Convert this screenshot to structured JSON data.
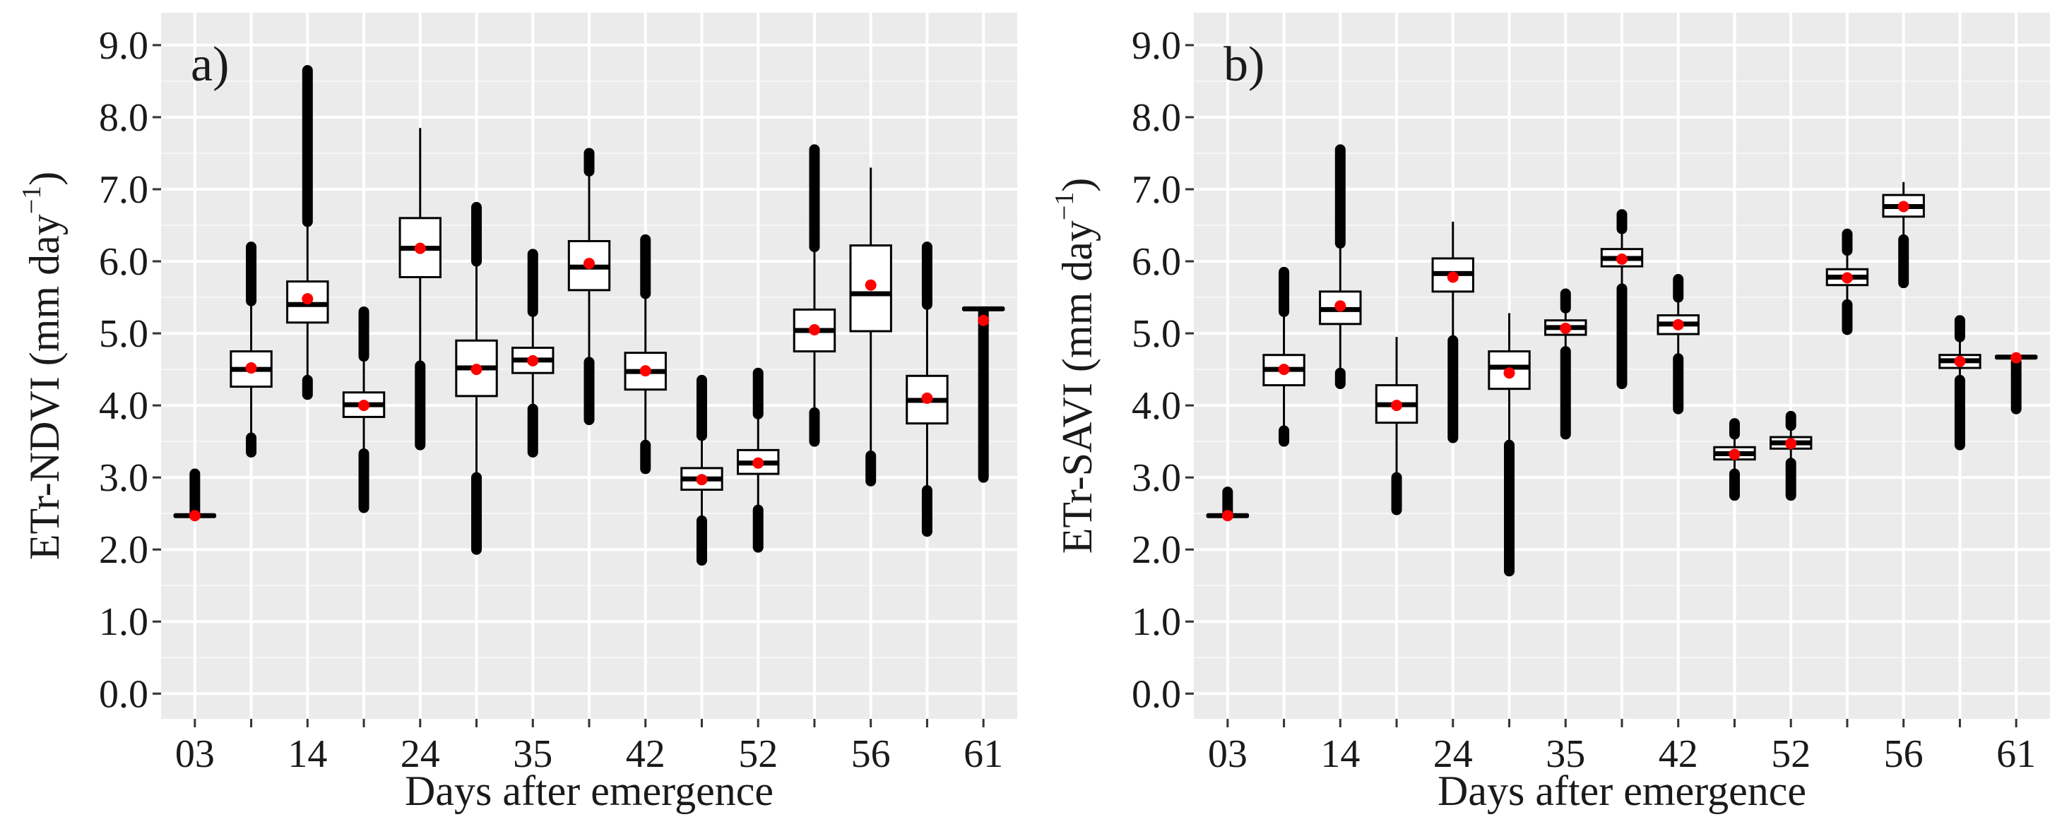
{
  "chart_data": [
    {
      "type": "boxplot",
      "panel_label": "a)",
      "ylabel": "ETr-NDVI (mm day",
      "ylabel_sup": "−1",
      "ylabel_close": ")",
      "xlabel": "Days after emergence",
      "ylim": [
        -0.35,
        9.45
      ],
      "yticks": [
        "0.0",
        "1.0",
        "2.0",
        "3.0",
        "4.0",
        "5.0",
        "6.0",
        "7.0",
        "8.0",
        "9.0"
      ],
      "xtick_labels": [
        "03",
        "",
        "14",
        "",
        "24",
        "",
        "35",
        "",
        "42",
        "",
        "52",
        "",
        "56",
        "",
        "61"
      ],
      "grid": true,
      "boxes": [
        {
          "q1": 2.46,
          "median": 2.47,
          "q3": 2.48,
          "low": 2.46,
          "high": 2.48,
          "mean": 2.47,
          "out_low": null,
          "out_high": [
            2.5,
            3.05
          ]
        },
        {
          "q1": 4.26,
          "median": 4.5,
          "q3": 4.75,
          "low": 3.55,
          "high": 5.45,
          "mean": 4.52,
          "out_low": [
            3.35,
            3.55
          ],
          "out_high": [
            5.45,
            6.2
          ]
        },
        {
          "q1": 5.15,
          "median": 5.4,
          "q3": 5.72,
          "low": 4.35,
          "high": 6.55,
          "mean": 5.48,
          "out_low": [
            4.15,
            4.35
          ],
          "out_high": [
            6.55,
            8.65
          ]
        },
        {
          "q1": 3.84,
          "median": 4.01,
          "q3": 4.18,
          "low": 3.33,
          "high": 4.68,
          "mean": 4.0,
          "out_low": [
            2.58,
            3.33
          ],
          "out_high": [
            4.68,
            5.3
          ]
        },
        {
          "q1": 5.78,
          "median": 6.18,
          "q3": 6.6,
          "low": 4.55,
          "high": 7.85,
          "mean": 6.18,
          "out_low": [
            3.45,
            4.55
          ],
          "out_high": null
        },
        {
          "q1": 4.13,
          "median": 4.52,
          "q3": 4.9,
          "low": 3.0,
          "high": 6.0,
          "mean": 4.5,
          "out_low": [
            2.0,
            3.0
          ],
          "out_high": [
            6.0,
            6.75
          ]
        },
        {
          "q1": 4.45,
          "median": 4.63,
          "q3": 4.8,
          "low": 3.95,
          "high": 5.3,
          "mean": 4.62,
          "out_low": [
            3.35,
            3.95
          ],
          "out_high": [
            5.3,
            6.1
          ]
        },
        {
          "q1": 5.6,
          "median": 5.92,
          "q3": 6.28,
          "low": 4.6,
          "high": 7.25,
          "mean": 5.97,
          "out_low": [
            3.8,
            4.6
          ],
          "out_high": [
            7.25,
            7.5
          ]
        },
        {
          "q1": 4.22,
          "median": 4.47,
          "q3": 4.73,
          "low": 3.45,
          "high": 5.55,
          "mean": 4.48,
          "out_low": [
            3.12,
            3.45
          ],
          "out_high": [
            5.55,
            6.3
          ]
        },
        {
          "q1": 2.83,
          "median": 2.98,
          "q3": 3.13,
          "low": 2.4,
          "high": 3.58,
          "mean": 2.97,
          "out_low": [
            1.85,
            2.4
          ],
          "out_high": [
            3.58,
            4.35
          ]
        },
        {
          "q1": 3.05,
          "median": 3.2,
          "q3": 3.38,
          "low": 2.55,
          "high": 3.88,
          "mean": 3.2,
          "out_low": [
            2.03,
            2.55
          ],
          "out_high": [
            3.88,
            4.45
          ]
        },
        {
          "q1": 4.75,
          "median": 5.04,
          "q3": 5.33,
          "low": 3.9,
          "high": 6.2,
          "mean": 5.05,
          "out_low": [
            3.5,
            3.9
          ],
          "out_high": [
            6.2,
            7.55
          ]
        },
        {
          "q1": 5.03,
          "median": 5.55,
          "q3": 6.22,
          "low": 3.3,
          "high": 7.3,
          "mean": 5.67,
          "out_low": [
            2.95,
            3.3
          ],
          "out_high": null
        },
        {
          "q1": 3.75,
          "median": 4.07,
          "q3": 4.41,
          "low": 2.82,
          "high": 5.4,
          "mean": 4.1,
          "out_low": [
            2.25,
            2.82
          ],
          "out_high": [
            5.4,
            6.2
          ]
        },
        {
          "q1": 5.33,
          "median": 5.34,
          "q3": 5.35,
          "low": 5.33,
          "high": 5.35,
          "mean": 5.18,
          "out_low": [
            3.0,
            5.3
          ],
          "out_high": null
        }
      ]
    },
    {
      "type": "boxplot",
      "panel_label": "b)",
      "ylabel": "ETr-SAVI (mm day",
      "ylabel_sup": "−1",
      "ylabel_close": ")",
      "xlabel": "Days after emergence",
      "ylim": [
        -0.35,
        9.45
      ],
      "yticks": [
        "0.0",
        "1.0",
        "2.0",
        "3.0",
        "4.0",
        "5.0",
        "6.0",
        "7.0",
        "8.0",
        "9.0"
      ],
      "xtick_labels": [
        "03",
        "",
        "14",
        "",
        "24",
        "",
        "35",
        "",
        "42",
        "",
        "52",
        "",
        "56",
        "",
        "61"
      ],
      "grid": true,
      "boxes": [
        {
          "q1": 2.46,
          "median": 2.47,
          "q3": 2.48,
          "low": 2.46,
          "high": 2.48,
          "mean": 2.47,
          "out_low": null,
          "out_high": [
            2.5,
            2.8
          ]
        },
        {
          "q1": 4.28,
          "median": 4.5,
          "q3": 4.7,
          "low": 3.65,
          "high": 5.3,
          "mean": 4.5,
          "out_low": [
            3.5,
            3.65
          ],
          "out_high": [
            5.3,
            5.85
          ]
        },
        {
          "q1": 5.13,
          "median": 5.33,
          "q3": 5.58,
          "low": 4.45,
          "high": 6.25,
          "mean": 5.38,
          "out_low": [
            4.3,
            4.45
          ],
          "out_high": [
            6.25,
            7.55
          ]
        },
        {
          "q1": 3.76,
          "median": 4.01,
          "q3": 4.28,
          "low": 3.0,
          "high": 4.95,
          "mean": 4.0,
          "out_low": [
            2.55,
            3.0
          ],
          "out_high": null
        },
        {
          "q1": 5.58,
          "median": 5.83,
          "q3": 6.04,
          "low": 4.9,
          "high": 6.55,
          "mean": 5.78,
          "out_low": [
            3.55,
            4.9
          ],
          "out_high": null
        },
        {
          "q1": 4.23,
          "median": 4.53,
          "q3": 4.75,
          "low": 3.45,
          "high": 5.28,
          "mean": 4.45,
          "out_low": [
            1.7,
            3.45
          ],
          "out_high": null
        },
        {
          "q1": 4.98,
          "median": 5.08,
          "q3": 5.18,
          "low": 4.75,
          "high": 5.35,
          "mean": 5.07,
          "out_low": [
            3.6,
            4.75
          ],
          "out_high": [
            5.35,
            5.55
          ]
        },
        {
          "q1": 5.93,
          "median": 6.04,
          "q3": 6.17,
          "low": 5.62,
          "high": 6.45,
          "mean": 6.03,
          "out_low": [
            4.3,
            5.62
          ],
          "out_high": [
            6.45,
            6.65
          ]
        },
        {
          "q1": 4.99,
          "median": 5.13,
          "q3": 5.25,
          "low": 4.65,
          "high": 5.5,
          "mean": 5.12,
          "out_low": [
            3.95,
            4.65
          ],
          "out_high": [
            5.5,
            5.75
          ]
        },
        {
          "q1": 3.25,
          "median": 3.33,
          "q3": 3.42,
          "low": 3.05,
          "high": 3.6,
          "mean": 3.32,
          "out_low": [
            2.75,
            3.05
          ],
          "out_high": [
            3.6,
            3.75
          ]
        },
        {
          "q1": 3.4,
          "median": 3.48,
          "q3": 3.56,
          "low": 3.2,
          "high": 3.72,
          "mean": 3.47,
          "out_low": [
            2.75,
            3.2
          ],
          "out_high": [
            3.72,
            3.85
          ]
        },
        {
          "q1": 5.67,
          "median": 5.78,
          "q3": 5.89,
          "low": 5.4,
          "high": 6.15,
          "mean": 5.77,
          "out_low": [
            5.05,
            5.4
          ],
          "out_high": [
            6.15,
            6.38
          ]
        },
        {
          "q1": 6.62,
          "median": 6.76,
          "q3": 6.92,
          "low": 6.3,
          "high": 7.1,
          "mean": 6.76,
          "out_low": [
            5.7,
            6.3
          ],
          "out_high": null
        },
        {
          "q1": 4.52,
          "median": 4.62,
          "q3": 4.7,
          "low": 4.35,
          "high": 4.95,
          "mean": 4.61,
          "out_low": [
            3.45,
            4.35
          ],
          "out_high": [
            4.95,
            5.18
          ]
        },
        {
          "q1": 4.66,
          "median": 4.67,
          "q3": 4.68,
          "low": 4.66,
          "high": 4.68,
          "mean": 4.66,
          "out_low": [
            3.95,
            4.6
          ],
          "out_high": null
        }
      ]
    }
  ]
}
